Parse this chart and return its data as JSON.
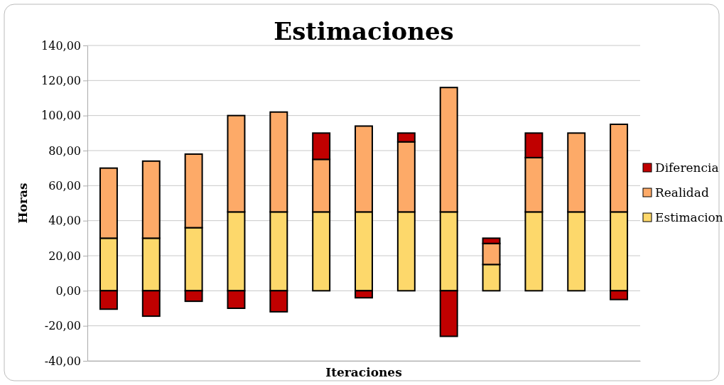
{
  "chart_data": {
    "type": "bar",
    "title": "Estimaciones",
    "xlabel": "Iteraciones",
    "ylabel": "Horas",
    "stacked": true,
    "categories": [
      null,
      null,
      null,
      null,
      null,
      null,
      null,
      null,
      null,
      null,
      null,
      null,
      null
    ],
    "series": [
      {
        "name": "Estimacion",
        "color": "#fdd86b",
        "values": [
          30,
          30,
          36,
          45,
          45,
          45,
          45,
          45,
          45,
          15,
          45,
          45,
          45
        ]
      },
      {
        "name": "Realidad",
        "color": "#fdaa68",
        "values": [
          40,
          44,
          42,
          55,
          57,
          30,
          49,
          40,
          71,
          12,
          31,
          45,
          50
        ]
      },
      {
        "name": "Diferencia",
        "color": "#c00000",
        "values": [
          -10.5,
          -14.5,
          -6,
          -10,
          -12,
          15,
          -4,
          5,
          -26,
          3,
          14,
          0,
          -5
        ]
      }
    ],
    "ylim": [
      -40,
      140
    ],
    "yticks": [
      {
        "value": -40,
        "label": "-40,00"
      },
      {
        "value": -20,
        "label": "-20,00"
      },
      {
        "value": 0,
        "label": "0,00"
      },
      {
        "value": 20,
        "label": "20,00"
      },
      {
        "value": 40,
        "label": "40,00"
      },
      {
        "value": 60,
        "label": "60,00"
      },
      {
        "value": 80,
        "label": "80,00"
      },
      {
        "value": 100,
        "label": "100,00"
      },
      {
        "value": 120,
        "label": "120,00"
      },
      {
        "value": 140,
        "label": "140,00"
      }
    ],
    "grid": "y",
    "legend": "right"
  }
}
